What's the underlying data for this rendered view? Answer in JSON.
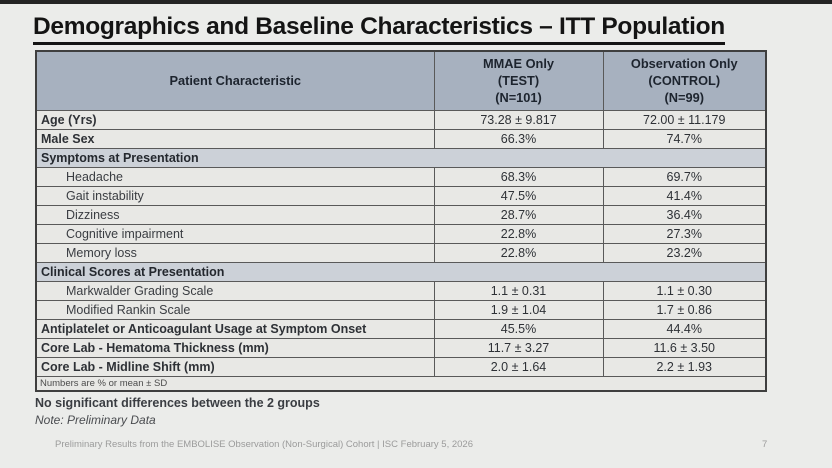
{
  "slide": {
    "title": "Demographics and Baseline Characteristics – ITT Population",
    "emphasis_note": "No significant differences between the 2 groups",
    "preliminary_note": "Note: Preliminary Data",
    "footer": "Preliminary Results from the EMBOLISE Observation (Non-Surgical) Cohort |  ISC February 5, 2026",
    "page_number": "7"
  },
  "table": {
    "columns": {
      "characteristic": "Patient Characteristic",
      "test": {
        "line1": "MMAE Only",
        "line2": "(TEST)",
        "line3": "(N=101)"
      },
      "control": {
        "line1": "Observation Only",
        "line2": "(CONTROL)",
        "line3": "(N=99)"
      }
    },
    "rows": [
      {
        "type": "data",
        "label": "Age (Yrs)",
        "test": "73.28 ± 9.817",
        "control": "72.00 ± 11.179"
      },
      {
        "type": "data",
        "label": "Male Sex",
        "test": "66.3%",
        "control": "74.7%"
      },
      {
        "type": "section",
        "label": "Symptoms at Presentation"
      },
      {
        "type": "indent",
        "label": "Headache",
        "test": "68.3%",
        "control": "69.7%"
      },
      {
        "type": "indent",
        "label": "Gait instability",
        "test": "47.5%",
        "control": "41.4%"
      },
      {
        "type": "indent",
        "label": "Dizziness",
        "test": "28.7%",
        "control": "36.4%"
      },
      {
        "type": "indent",
        "label": "Cognitive impairment",
        "test": "22.8%",
        "control": "27.3%"
      },
      {
        "type": "indent",
        "label": "Memory loss",
        "test": "22.8%",
        "control": "23.2%"
      },
      {
        "type": "section",
        "label": "Clinical Scores at Presentation"
      },
      {
        "type": "indent",
        "label": "Markwalder Grading Scale",
        "test": "1.1 ± 0.31",
        "control": "1.1 ± 0.30"
      },
      {
        "type": "indent",
        "label": "Modified Rankin Scale",
        "test": "1.9 ± 1.04",
        "control": "1.7 ± 0.86"
      },
      {
        "type": "data",
        "label": "Antiplatelet or Anticoagulant Usage at Symptom Onset",
        "test": "45.5%",
        "control": "44.4%"
      },
      {
        "type": "data",
        "label": "Core Lab - Hematoma Thickness (mm)",
        "test": "11.7 ± 3.27",
        "control": "11.6 ± 3.50"
      },
      {
        "type": "data",
        "label": "Core Lab - Midline Shift (mm)",
        "test": "2.0 ± 1.64",
        "control": "2.2 ± 1.93"
      }
    ],
    "footnote": "Numbers are % or mean ± SD"
  },
  "colors": {
    "slide_bg": "#ebecea",
    "header_bg": "#a7b1bf",
    "section_bg": "#ccd1d8",
    "row_bg": "#e8e8e5",
    "border": "#595959",
    "title_text": "#141414",
    "footer_text": "#9b9b9b"
  }
}
